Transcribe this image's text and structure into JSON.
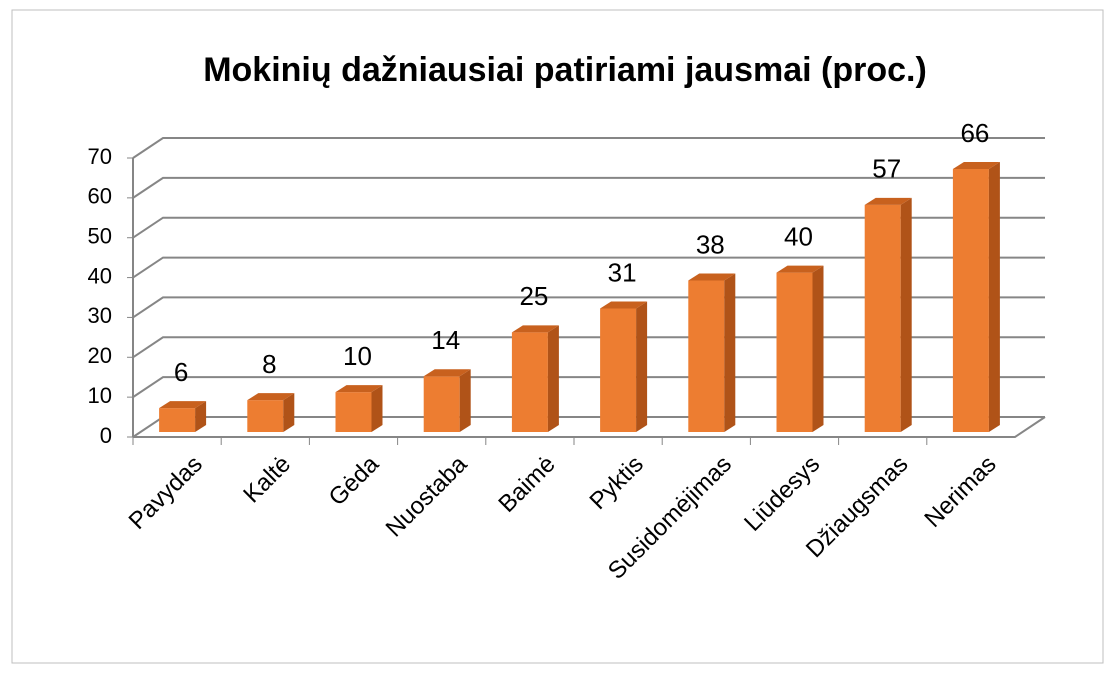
{
  "chart_data": {
    "type": "bar3d",
    "title": "Mokinių dažniausiai patiriami jausmai (proc.)",
    "categories": [
      "Pavydas",
      "Kaltė",
      "Gėda",
      "Nuostaba",
      "Baimė",
      "Pyktis",
      "Susidomėjimas",
      "Liūdesys",
      "Džiaugsmas",
      "Nerimas"
    ],
    "values": [
      6,
      8,
      10,
      14,
      25,
      31,
      38,
      40,
      57,
      66
    ],
    "color": "#ed7d31",
    "ylim": [
      0,
      70
    ],
    "yticks": [
      0,
      10,
      20,
      30,
      40,
      50,
      60,
      70
    ],
    "grid": true
  }
}
